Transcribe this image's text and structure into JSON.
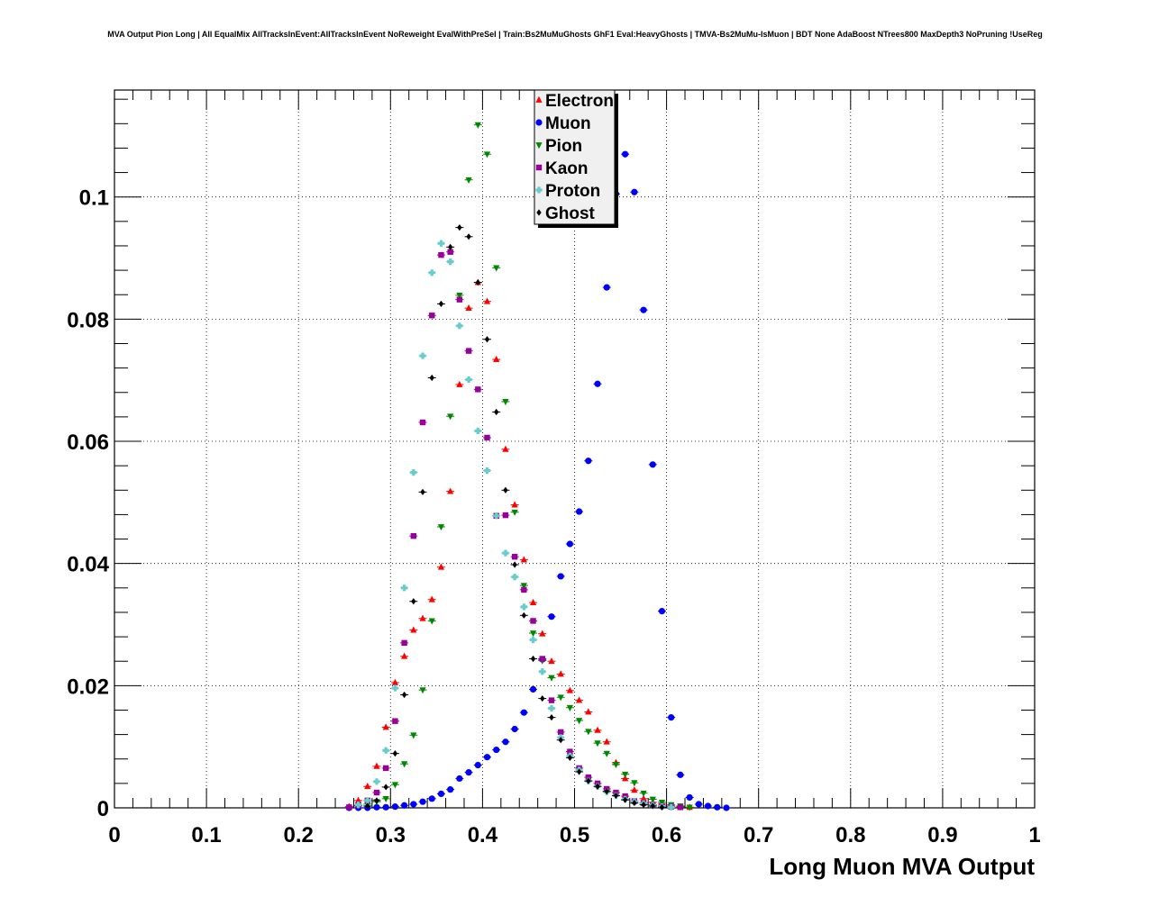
{
  "chart_data": {
    "type": "scatter",
    "title": "MVA Output Pion Long | All EqualMix AllTracksInEvent:AllTracksInEvent NoReweight EvalWithPreSel | Train:Bs2MuMuGhosts GhF1 Eval:HeavyGhosts | TMVA-Bs2MuMu-IsMuon | BDT None AdaBoost NTrees800 MaxDepth3 NoPruning !UseReg",
    "xlabel": "Long Muon MVA Output",
    "ylabel": "",
    "xlim": [
      0,
      1
    ],
    "ylim": [
      0,
      0.1175
    ],
    "x_ticks": [
      "0",
      "0.1",
      "0.2",
      "0.3",
      "0.4",
      "0.5",
      "0.6",
      "0.7",
      "0.8",
      "0.9",
      "1"
    ],
    "y_ticks": [
      "0",
      "0.02",
      "0.04",
      "0.06",
      "0.08",
      "0.1"
    ],
    "grid": true,
    "legend_position": "top-center",
    "series": [
      {
        "name": "Electron",
        "color": "#ff0000",
        "marker": "triangle-up",
        "x": [
          0.255,
          0.265,
          0.275,
          0.285,
          0.295,
          0.305,
          0.315,
          0.325,
          0.335,
          0.345,
          0.355,
          0.365,
          0.375,
          0.385,
          0.395,
          0.405,
          0.415,
          0.425,
          0.435,
          0.445,
          0.455,
          0.465,
          0.475,
          0.485,
          0.495,
          0.505,
          0.515,
          0.525,
          0.535,
          0.545,
          0.555,
          0.565,
          0.575,
          0.585,
          0.595,
          0.605,
          0.615,
          0.625
        ],
        "y": [
          0.0002,
          0.0012,
          0.0035,
          0.0068,
          0.0132,
          0.0205,
          0.0248,
          0.0291,
          0.031,
          0.0341,
          0.0394,
          0.0518,
          0.0693,
          0.0818,
          0.086,
          0.0829,
          0.0734,
          0.0587,
          0.0496,
          0.0406,
          0.0336,
          0.0285,
          0.024,
          0.0219,
          0.0192,
          0.0176,
          0.0157,
          0.0127,
          0.0108,
          0.0074,
          0.0048,
          0.0029,
          0.0015,
          0.0009,
          0.0006,
          0.0003,
          0.0002,
          0.0001
        ]
      },
      {
        "name": "Muon",
        "color": "#0000ff",
        "marker": "circle",
        "x": [
          0.255,
          0.265,
          0.275,
          0.285,
          0.295,
          0.305,
          0.315,
          0.325,
          0.335,
          0.345,
          0.355,
          0.365,
          0.375,
          0.385,
          0.395,
          0.405,
          0.415,
          0.425,
          0.435,
          0.445,
          0.455,
          0.465,
          0.475,
          0.485,
          0.495,
          0.505,
          0.515,
          0.525,
          0.535,
          0.545,
          0.555,
          0.565,
          0.575,
          0.585,
          0.595,
          0.605,
          0.615,
          0.625,
          0.635,
          0.645,
          0.655,
          0.665
        ],
        "y": [
          0.0,
          0.0,
          0.0,
          0.0001,
          0.0001,
          0.0002,
          0.0004,
          0.0006,
          0.001,
          0.0015,
          0.0023,
          0.003,
          0.0048,
          0.0058,
          0.007,
          0.0083,
          0.0095,
          0.0108,
          0.0129,
          0.0156,
          0.0194,
          0.0243,
          0.0313,
          0.0379,
          0.0432,
          0.0485,
          0.0568,
          0.0694,
          0.0852,
          0.1005,
          0.107,
          0.1008,
          0.0815,
          0.0562,
          0.0322,
          0.0148,
          0.0054,
          0.0017,
          0.0006,
          0.0003,
          0.0001,
          0.0
        ]
      },
      {
        "name": "Pion",
        "color": "#008800",
        "marker": "triangle-down",
        "x": [
          0.265,
          0.275,
          0.285,
          0.295,
          0.305,
          0.315,
          0.325,
          0.335,
          0.345,
          0.355,
          0.365,
          0.375,
          0.385,
          0.395,
          0.405,
          0.415,
          0.425,
          0.435,
          0.445,
          0.455,
          0.465,
          0.475,
          0.485,
          0.495,
          0.505,
          0.515,
          0.525,
          0.535,
          0.545,
          0.555,
          0.565,
          0.575,
          0.585,
          0.595,
          0.605,
          0.615,
          0.625
        ],
        "y": [
          0.0003,
          0.0006,
          0.001,
          0.0015,
          0.0038,
          0.0072,
          0.0119,
          0.0193,
          0.0306,
          0.046,
          0.0641,
          0.0839,
          0.1028,
          0.1118,
          0.107,
          0.0884,
          0.0665,
          0.0484,
          0.0364,
          0.0286,
          0.0241,
          0.0213,
          0.0181,
          0.0164,
          0.0143,
          0.0125,
          0.0106,
          0.0089,
          0.0071,
          0.0055,
          0.0041,
          0.0024,
          0.0014,
          0.0009,
          0.0005,
          0.0003,
          0.0001
        ]
      },
      {
        "name": "Kaon",
        "color": "#990099",
        "marker": "square",
        "x": [
          0.255,
          0.265,
          0.275,
          0.285,
          0.295,
          0.305,
          0.315,
          0.325,
          0.335,
          0.345,
          0.355,
          0.365,
          0.375,
          0.385,
          0.395,
          0.405,
          0.415,
          0.425,
          0.435,
          0.445,
          0.455,
          0.465,
          0.475,
          0.485,
          0.495,
          0.505,
          0.515,
          0.525,
          0.535,
          0.545,
          0.555,
          0.565,
          0.575,
          0.585,
          0.595,
          0.605,
          0.615
        ],
        "y": [
          0.0001,
          0.0004,
          0.0012,
          0.0025,
          0.0065,
          0.0142,
          0.027,
          0.0445,
          0.0631,
          0.0806,
          0.0905,
          0.091,
          0.0832,
          0.0748,
          0.0685,
          0.0606,
          0.0478,
          0.0479,
          0.0411,
          0.0357,
          0.0306,
          0.0244,
          0.0176,
          0.0124,
          0.0092,
          0.0065,
          0.005,
          0.004,
          0.0031,
          0.0025,
          0.0019,
          0.0011,
          0.0008,
          0.0005,
          0.0003,
          0.0002,
          0.0001
        ]
      },
      {
        "name": "Proton",
        "color": "#66cccc",
        "marker": "cross",
        "x": [
          0.265,
          0.275,
          0.285,
          0.295,
          0.305,
          0.315,
          0.325,
          0.335,
          0.345,
          0.355,
          0.365,
          0.375,
          0.385,
          0.395,
          0.405,
          0.415,
          0.425,
          0.435,
          0.445,
          0.455,
          0.465,
          0.475,
          0.485,
          0.495,
          0.505,
          0.515,
          0.525,
          0.535,
          0.545,
          0.555,
          0.565,
          0.575,
          0.585,
          0.595,
          0.605
        ],
        "y": [
          0.0005,
          0.0012,
          0.0043,
          0.0094,
          0.0196,
          0.036,
          0.0549,
          0.074,
          0.0876,
          0.0924,
          0.0894,
          0.0789,
          0.0701,
          0.0617,
          0.0552,
          0.0478,
          0.0417,
          0.0378,
          0.0329,
          0.0275,
          0.0223,
          0.0163,
          0.0115,
          0.0085,
          0.0062,
          0.0044,
          0.0035,
          0.0026,
          0.002,
          0.0014,
          0.001,
          0.0007,
          0.0004,
          0.0002,
          0.0001
        ]
      },
      {
        "name": "Ghost",
        "color": "#000000",
        "marker": "diamond",
        "x": [
          0.275,
          0.285,
          0.295,
          0.305,
          0.315,
          0.325,
          0.335,
          0.345,
          0.355,
          0.365,
          0.375,
          0.385,
          0.395,
          0.405,
          0.415,
          0.425,
          0.435,
          0.445,
          0.455,
          0.465,
          0.475,
          0.485,
          0.495,
          0.505,
          0.515,
          0.525,
          0.535,
          0.545,
          0.555,
          0.565,
          0.575,
          0.585,
          0.595
        ],
        "y": [
          0.0003,
          0.0012,
          0.0034,
          0.0089,
          0.0185,
          0.0338,
          0.0517,
          0.0704,
          0.0825,
          0.0918,
          0.095,
          0.0935,
          0.086,
          0.0767,
          0.0648,
          0.052,
          0.0398,
          0.0315,
          0.0244,
          0.0179,
          0.0148,
          0.0111,
          0.0082,
          0.0059,
          0.0044,
          0.0035,
          0.0027,
          0.002,
          0.0013,
          0.0008,
          0.0005,
          0.0003,
          0.0001
        ]
      }
    ]
  }
}
